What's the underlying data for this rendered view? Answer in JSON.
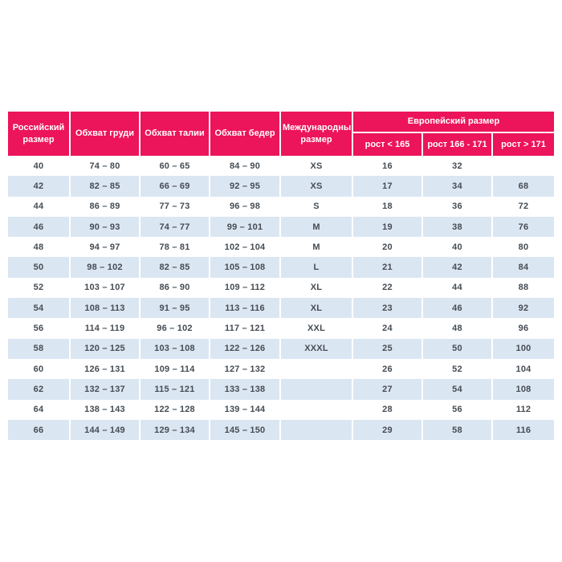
{
  "colors": {
    "header_bg": "#ec145a",
    "header_text": "#ffffff",
    "row_bg": "#ffffff",
    "row_alt_bg": "#dbe6f3",
    "cell_text": "#454c53"
  },
  "chart_data": {
    "type": "table",
    "title": "",
    "column_groups": [
      {
        "label": "Европейский размер",
        "span_columns": [
          "рост < 165",
          "рост 166 - 171",
          "рост > 171"
        ]
      }
    ],
    "columns": [
      "Российский размер",
      "Обхват груди",
      "Обхват талии",
      "Обхват бедер",
      "Международный размер",
      "рост < 165",
      "рост 166 - 171",
      "рост > 171"
    ],
    "rows": [
      [
        "40",
        "74 – 80",
        "60 – 65",
        "84 – 90",
        "XS",
        "16",
        "32",
        ""
      ],
      [
        "42",
        "82 – 85",
        "66 – 69",
        "92 – 95",
        "XS",
        "17",
        "34",
        "68"
      ],
      [
        "44",
        "86 – 89",
        "77 – 73",
        "96 – 98",
        "S",
        "18",
        "36",
        "72"
      ],
      [
        "46",
        "90 – 93",
        "74 – 77",
        "99 – 101",
        "M",
        "19",
        "38",
        "76"
      ],
      [
        "48",
        "94 – 97",
        "78 – 81",
        "102 – 104",
        "M",
        "20",
        "40",
        "80"
      ],
      [
        "50",
        "98 – 102",
        "82 – 85",
        "105 – 108",
        "L",
        "21",
        "42",
        "84"
      ],
      [
        "52",
        "103 – 107",
        "86 – 90",
        "109 – 112",
        "XL",
        "22",
        "44",
        "88"
      ],
      [
        "54",
        "108 – 113",
        "91 – 95",
        "113 – 116",
        "XL",
        "23",
        "46",
        "92"
      ],
      [
        "56",
        "114 – 119",
        "96 – 102",
        "117 – 121",
        "XXL",
        "24",
        "48",
        "96"
      ],
      [
        "58",
        "120 – 125",
        "103 – 108",
        "122 – 126",
        "XXXL",
        "25",
        "50",
        "100"
      ],
      [
        "60",
        "126 – 131",
        "109 – 114",
        "127 – 132",
        "",
        "26",
        "52",
        "104"
      ],
      [
        "62",
        "132 – 137",
        "115 – 121",
        "133 – 138",
        "",
        "27",
        "54",
        "108"
      ],
      [
        "64",
        "138 – 143",
        "122 – 128",
        "139 – 144",
        "",
        "28",
        "56",
        "112"
      ],
      [
        "66",
        "144 – 149",
        "129 – 134",
        "145 – 150",
        "",
        "29",
        "58",
        "116"
      ]
    ]
  }
}
